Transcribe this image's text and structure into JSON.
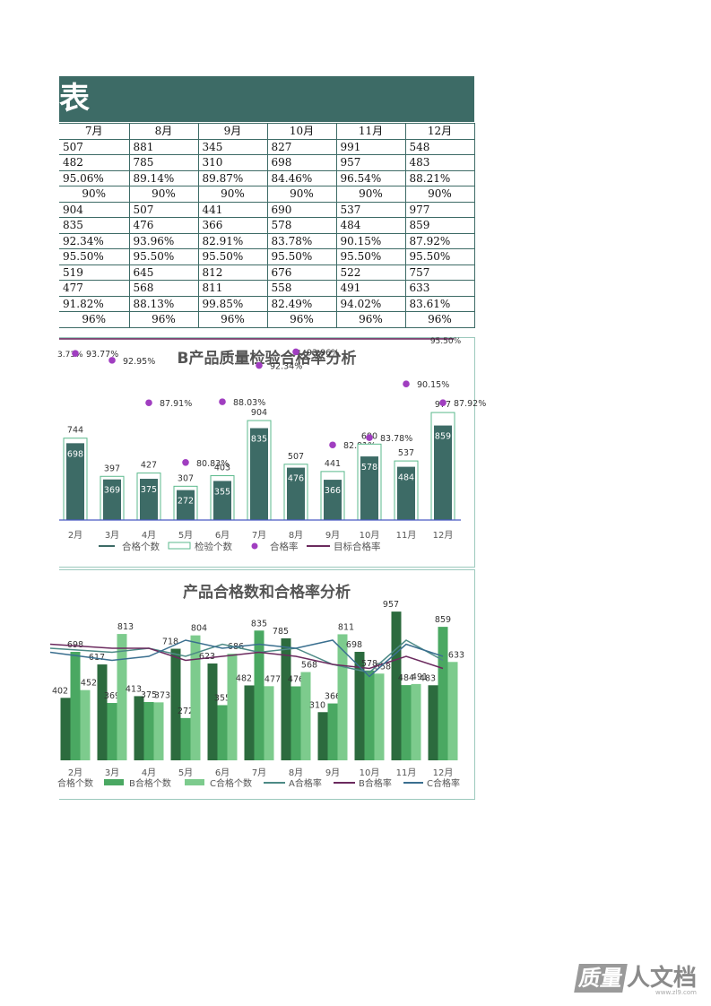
{
  "header": {
    "title": "表"
  },
  "table": {
    "columns": [
      "7月",
      "8月",
      "9月",
      "10月",
      "11月",
      "12月"
    ],
    "rows": [
      [
        "507",
        "881",
        "345",
        "827",
        "991",
        "548"
      ],
      [
        "482",
        "785",
        "310",
        "698",
        "957",
        "483"
      ],
      [
        "95.06%",
        "89.14%",
        "89.87%",
        "84.46%",
        "96.54%",
        "88.21%"
      ],
      [
        "90%",
        "90%",
        "90%",
        "90%",
        "90%",
        "90%"
      ],
      [
        "904",
        "507",
        "441",
        "690",
        "537",
        "977"
      ],
      [
        "835",
        "476",
        "366",
        "578",
        "484",
        "859"
      ],
      [
        "92.34%",
        "93.96%",
        "82.91%",
        "83.78%",
        "90.15%",
        "87.92%"
      ],
      [
        "95.50%",
        "95.50%",
        "95.50%",
        "95.50%",
        "95.50%",
        "95.50%"
      ],
      [
        "519",
        "645",
        "812",
        "676",
        "522",
        "757"
      ],
      [
        "477",
        "568",
        "811",
        "558",
        "491",
        "633"
      ],
      [
        "91.82%",
        "88.13%",
        "99.85%",
        "82.49%",
        "94.02%",
        "83.61%"
      ],
      [
        "96%",
        "96%",
        "96%",
        "96%",
        "96%",
        "96%"
      ]
    ]
  },
  "chart_data": [
    {
      "type": "bar",
      "title": "B产品质量检验合格率分析",
      "categories": [
        "2月",
        "3月",
        "4月",
        "5月",
        "6月",
        "7月",
        "8月",
        "9月",
        "10月",
        "11月",
        "12月"
      ],
      "series": [
        {
          "name": "合格个数",
          "values": [
            698,
            369,
            375,
            272,
            355,
            835,
            476,
            366,
            578,
            484,
            859
          ]
        },
        {
          "name": "检验个数",
          "values": [
            744,
            397,
            427,
            307,
            403,
            904,
            507,
            441,
            690,
            537,
            977
          ]
        },
        {
          "name": "合格率",
          "values": [
            93.77,
            92.95,
            87.91,
            80.83,
            88.03,
            92.34,
            93.96,
            82.91,
            83.78,
            90.15,
            87.92
          ]
        },
        {
          "name": "目标合格率",
          "values": [
            95.5,
            95.5,
            95.5,
            95.5,
            95.5,
            95.5,
            95.5,
            95.5,
            95.5,
            95.5,
            95.5
          ]
        }
      ],
      "bar_labels": {
        "合格个数": [
          "698",
          "369",
          "375",
          "272",
          "355",
          "835",
          "476",
          "366",
          "578",
          "484",
          "859"
        ],
        "检验个数": [
          "744",
          "397",
          "427",
          "307",
          "403",
          "904",
          "507",
          "441",
          "690",
          "537",
          "977"
        ]
      },
      "rate_labels": [
        "93.77%",
        "92.95%",
        "87.91%",
        "80.83%",
        "88.03%",
        "92.34%",
        "93.96%",
        "82.91%",
        "83.78%",
        "90.15%",
        "87.92%"
      ],
      "extra_labels": {
        "left_cut": "3.73%",
        "target": "95.50%"
      },
      "colors": {
        "pass": "#3d6b66",
        "inspect_border": "#5bb98c",
        "rate": "#a03ec0",
        "target": "#6b2a5e",
        "axis": "#4a5bc4"
      },
      "legend": "bottom",
      "ylim": [
        0,
        1100
      ]
    },
    {
      "type": "bar",
      "title": "产品合格数和合格率分析",
      "categories": [
        "2月",
        "3月",
        "4月",
        "5月",
        "6月",
        "7月",
        "8月",
        "9月",
        "10月",
        "11月",
        "12月"
      ],
      "series": [
        {
          "name": "合格个数",
          "values": [
            402,
            617,
            413,
            718,
            623,
            482,
            785,
            310,
            698,
            957,
            483
          ]
        },
        {
          "name": "B合格个数",
          "values": [
            698,
            369,
            375,
            272,
            355,
            835,
            476,
            366,
            578,
            484,
            859
          ]
        },
        {
          "name": "C合格个数",
          "values": [
            452,
            813,
            373,
            804,
            686,
            477,
            568,
            811,
            558,
            491,
            633
          ]
        },
        {
          "name": "A合格率",
          "values": [
            94,
            93,
            94,
            92,
            95,
            93,
            94,
            90,
            88,
            96,
            91
          ]
        },
        {
          "name": "B合格率",
          "values": [
            95,
            94,
            94,
            91,
            92,
            93,
            92,
            90,
            89,
            92,
            89
          ]
        },
        {
          "name": "C合格率",
          "values": [
            93,
            91,
            92,
            96,
            94,
            95,
            94,
            96,
            87,
            95,
            92
          ]
        }
      ],
      "bar_labels": {
        "合格个数": [
          "402",
          "617",
          "413",
          "718",
          "623",
          "482",
          "785",
          "310",
          "698",
          "957",
          "483"
        ],
        "B合格个数": [
          "698",
          "369",
          "375",
          "272",
          "355",
          "835",
          "476",
          "366",
          "578",
          "484",
          "859"
        ],
        "C合格个数": [
          "452",
          "813",
          "373",
          "804",
          "686",
          "477",
          "568",
          "811",
          "558",
          "491",
          "633"
        ]
      },
      "colors": {
        "a": "#2c6b3e",
        "b": "#4aa862",
        "c": "#7dcb8d",
        "rate_a": "#4d8a86",
        "rate_b": "#6b2a5e",
        "rate_c": "#3a6f8f"
      },
      "legend": "bottom",
      "ylim": [
        0,
        1050
      ]
    }
  ],
  "watermark": {
    "box": "质量",
    "text": "人文档",
    "url": "www.zl9.com"
  }
}
